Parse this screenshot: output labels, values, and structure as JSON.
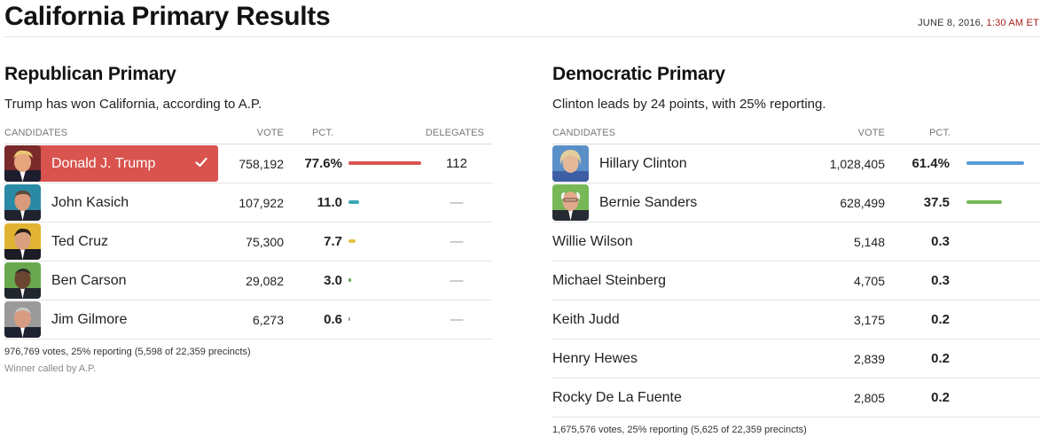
{
  "header": {
    "title": "California Primary Results",
    "date": "JUNE 8, 2016,",
    "time": "1:30 AM ET"
  },
  "colors": {
    "winner_highlight": "#d9534f",
    "timestamp_time": "#a61f1f"
  },
  "republican": {
    "title": "Republican Primary",
    "status": "Trump has won California, according to A.P.",
    "columns": {
      "candidates": "CANDIDATES",
      "vote": "VOTE",
      "pct": "PCT.",
      "delegates": "DELEGATES"
    },
    "candidates": [
      {
        "name": "Donald J. Trump",
        "votes": "758,192",
        "pct": "77.6%",
        "pct_value": 77.6,
        "delegates": "112",
        "bar_color": "#d9534f",
        "winner": true
      },
      {
        "name": "John Kasich",
        "votes": "107,922",
        "pct": "11.0",
        "pct_value": 11.0,
        "delegates": "—",
        "bar_color": "#3aa5b5"
      },
      {
        "name": "Ted Cruz",
        "votes": "75,300",
        "pct": "7.7",
        "pct_value": 7.7,
        "delegates": "—",
        "bar_color": "#e8c140"
      },
      {
        "name": "Ben Carson",
        "votes": "29,082",
        "pct": "3.0",
        "pct_value": 3.0,
        "delegates": "—",
        "bar_color": "#6aa84f"
      },
      {
        "name": "Jim Gilmore",
        "votes": "6,273",
        "pct": "0.6",
        "pct_value": 0.6,
        "delegates": "—",
        "bar_color": "#999999"
      }
    ],
    "footnote": "976,769 votes, 25% reporting (5,598 of 22,359 precincts)",
    "winner_note": "Winner called by A.P."
  },
  "democratic": {
    "title": "Democratic Primary",
    "status": "Clinton leads by 24 points, with 25% reporting.",
    "columns": {
      "candidates": "CANDIDATES",
      "vote": "VOTE",
      "pct": "PCT."
    },
    "candidates": [
      {
        "name": "Hillary Clinton",
        "votes": "1,028,405",
        "pct": "61.4%",
        "pct_value": 61.4,
        "bar_color": "#5a9bd5",
        "photo": true
      },
      {
        "name": "Bernie Sanders",
        "votes": "628,499",
        "pct": "37.5",
        "pct_value": 37.5,
        "bar_color": "#76b856",
        "photo": true
      },
      {
        "name": "Willie Wilson",
        "votes": "5,148",
        "pct": "0.3"
      },
      {
        "name": "Michael Steinberg",
        "votes": "4,705",
        "pct": "0.3"
      },
      {
        "name": "Keith Judd",
        "votes": "3,175",
        "pct": "0.2"
      },
      {
        "name": "Henry Hewes",
        "votes": "2,839",
        "pct": "0.2"
      },
      {
        "name": "Rocky De La Fuente",
        "votes": "2,805",
        "pct": "0.2"
      }
    ],
    "footnote": "1,675,576 votes, 25% reporting (5,625 of 22,359 precincts)"
  }
}
